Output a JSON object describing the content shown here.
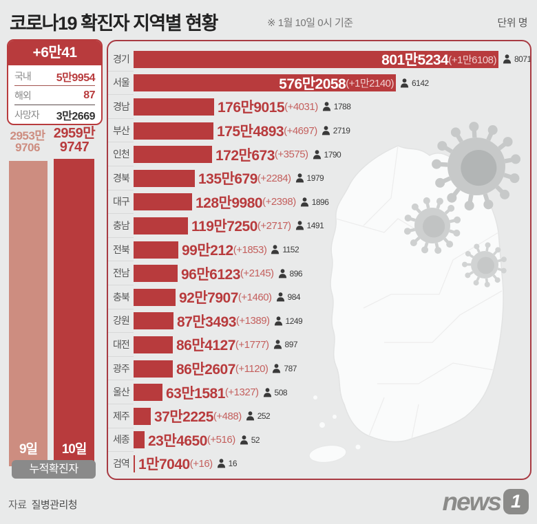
{
  "header": {
    "title_strong": "코로나19",
    "title_rest": "확진자 지역별 현황",
    "date_note": "※ 1월 10일 0시 기준",
    "unit": "단위 명"
  },
  "summary": {
    "new_total": "+6만41",
    "rows": [
      {
        "label": "국내",
        "value": "5만9954"
      },
      {
        "label": "해외",
        "value": "87"
      },
      {
        "label": "사망자",
        "value": "3만2669"
      }
    ]
  },
  "cumulative": {
    "caption": "누적확진자",
    "prev": {
      "day": "9일",
      "line1": "2953만",
      "line2": "9706",
      "total": 29539706
    },
    "curr": {
      "day": "10일",
      "line1": "2959만",
      "line2": "9747",
      "total": 29599747
    }
  },
  "chart_data": {
    "type": "bar",
    "orientation": "horizontal",
    "title": "코로나19 확진자 지역별 현황",
    "unit": "명",
    "max_value": 8015234,
    "regions": [
      {
        "name": "경기",
        "total": 8015234,
        "total_label": "801만5234",
        "delta_label": "(+1만6108)",
        "deaths": 8071,
        "label_inside_bar": true
      },
      {
        "name": "서울",
        "total": 5762058,
        "total_label": "576만2058",
        "delta_label": "(+1만2140)",
        "deaths": 6142,
        "label_inside_bar": true
      },
      {
        "name": "경남",
        "total": 1769015,
        "total_label": "176만9015",
        "delta_label": "(+4031)",
        "deaths": 1788,
        "label_inside_bar": false
      },
      {
        "name": "부산",
        "total": 1754893,
        "total_label": "175만4893",
        "delta_label": "(+4697)",
        "deaths": 2719,
        "label_inside_bar": false
      },
      {
        "name": "인천",
        "total": 1720673,
        "total_label": "172만673",
        "delta_label": "(+3575)",
        "deaths": 1790,
        "label_inside_bar": false
      },
      {
        "name": "경북",
        "total": 1350679,
        "total_label": "135만679",
        "delta_label": "(+2284)",
        "deaths": 1979,
        "label_inside_bar": false
      },
      {
        "name": "대구",
        "total": 1289980,
        "total_label": "128만9980",
        "delta_label": "(+2398)",
        "deaths": 1896,
        "label_inside_bar": false
      },
      {
        "name": "충남",
        "total": 1197250,
        "total_label": "119만7250",
        "delta_label": "(+2717)",
        "deaths": 1491,
        "label_inside_bar": false
      },
      {
        "name": "전북",
        "total": 990212,
        "total_label": "99만212",
        "delta_label": "(+1853)",
        "deaths": 1152,
        "label_inside_bar": false
      },
      {
        "name": "전남",
        "total": 966123,
        "total_label": "96만6123",
        "delta_label": "(+2145)",
        "deaths": 896,
        "label_inside_bar": false
      },
      {
        "name": "충북",
        "total": 927907,
        "total_label": "92만7907",
        "delta_label": "(+1460)",
        "deaths": 984,
        "label_inside_bar": false
      },
      {
        "name": "강원",
        "total": 873493,
        "total_label": "87만3493",
        "delta_label": "(+1389)",
        "deaths": 1249,
        "label_inside_bar": false
      },
      {
        "name": "대전",
        "total": 864127,
        "total_label": "86만4127",
        "delta_label": "(+1777)",
        "deaths": 897,
        "label_inside_bar": false
      },
      {
        "name": "광주",
        "total": 862607,
        "total_label": "86만2607",
        "delta_label": "(+1120)",
        "deaths": 787,
        "label_inside_bar": false
      },
      {
        "name": "울산",
        "total": 631581,
        "total_label": "63만1581",
        "delta_label": "(+1327)",
        "deaths": 508,
        "label_inside_bar": false
      },
      {
        "name": "제주",
        "total": 372225,
        "total_label": "37만2225",
        "delta_label": "(+488)",
        "deaths": 252,
        "label_inside_bar": false
      },
      {
        "name": "세종",
        "total": 234650,
        "total_label": "23만4650",
        "delta_label": "(+516)",
        "deaths": 52,
        "label_inside_bar": false
      },
      {
        "name": "검역",
        "total": 17040,
        "total_label": "1만7040",
        "delta_label": "(+16)",
        "deaths": 16,
        "label_inside_bar": false
      }
    ]
  },
  "footer": {
    "source_label": "자료",
    "source_value": "질병관리청",
    "logo_text": "news",
    "logo_badge": "1"
  },
  "colors": {
    "bar_red": "#b83b3d",
    "salmon": "#cd8d80",
    "panel_border": "#a83a42",
    "pill_gray": "#8a8a8a",
    "background": "#e9eaea",
    "dark_text": "#3a3a3a"
  }
}
